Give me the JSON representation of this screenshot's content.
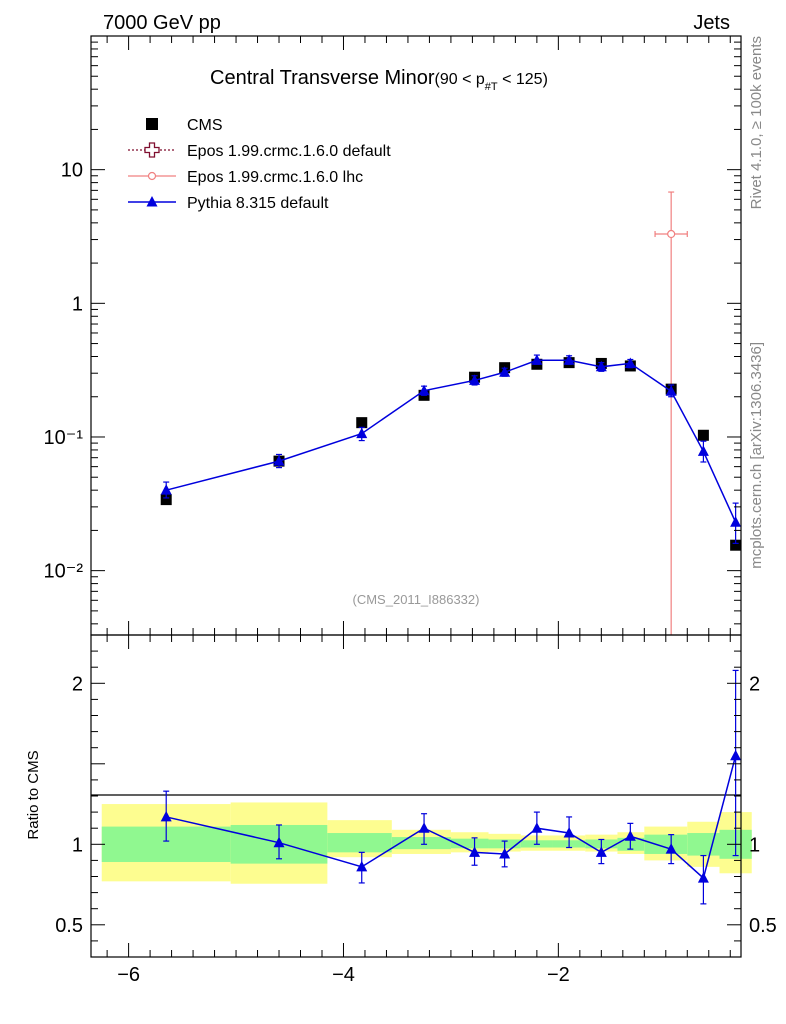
{
  "header": {
    "left": "7000 GeV pp",
    "right": "Jets"
  },
  "side_labels": {
    "rivet": "Rivet 4.1.0, ≥ 100k events",
    "mcplots": "mcplots.cern.ch [arXiv:1306.3436]"
  },
  "colors": {
    "cms": "#000000",
    "epos_default": "#7f0f2f",
    "epos_lhc": "#f08080",
    "pythia": "#0000dd",
    "band_inner": "#90f890",
    "band_outer": "#fdfd90"
  },
  "chart_data": [
    {
      "type": "scatter",
      "title": "Central Transverse Minor",
      "title_suffix": "(90 < p",
      "title_sub": "#T",
      "title_end": " < 125)",
      "analysis_tag": "(CMS_2011_I886332)",
      "yscale": "log",
      "xlim": [
        -6.35,
        -0.3
      ],
      "ylim": [
        0.0033,
        100
      ],
      "y_major_ticks": [
        0.01,
        0.1,
        1,
        10
      ],
      "y_tick_labels": [
        "10⁻²",
        "10⁻¹",
        "1",
        "10"
      ],
      "x_ticks": [
        -6,
        -4,
        -2
      ],
      "x_tick_labels": [
        "−6",
        "−4",
        "−2"
      ],
      "legend": [
        {
          "key": "cms",
          "label": "CMS"
        },
        {
          "key": "epos_default",
          "label": "Epos 1.99.crmc.1.6.0 default"
        },
        {
          "key": "epos_lhc",
          "label": "Epos 1.99.crmc.1.6.0 lhc"
        },
        {
          "key": "pythia",
          "label": "Pythia 8.315 default"
        }
      ],
      "series": [
        {
          "name": "CMS",
          "key": "cms",
          "x": [
            -5.65,
            -4.6,
            -3.83,
            -3.25,
            -2.78,
            -2.5,
            -2.2,
            -1.9,
            -1.6,
            -1.33,
            -0.95,
            -0.65,
            -0.35
          ],
          "y": [
            0.034,
            0.066,
            0.128,
            0.205,
            0.28,
            0.33,
            0.35,
            0.36,
            0.355,
            0.34,
            0.228,
            0.103,
            0.0155
          ]
        },
        {
          "name": "Epos 1.99.crmc.1.6.0 lhc",
          "key": "epos_lhc",
          "x": [
            -0.95
          ],
          "xerr": [
            0.15
          ],
          "y": [
            3.3
          ],
          "ylo": [
            0.001
          ],
          "yhi": [
            6.8
          ]
        },
        {
          "name": "Pythia 8.315 default",
          "key": "pythia",
          "x": [
            -5.65,
            -4.6,
            -3.83,
            -3.25,
            -2.78,
            -2.5,
            -2.2,
            -1.9,
            -1.6,
            -1.33,
            -0.95,
            -0.65,
            -0.35
          ],
          "y": [
            0.04,
            0.066,
            0.106,
            0.222,
            0.265,
            0.305,
            0.375,
            0.375,
            0.335,
            0.355,
            0.22,
            0.078,
            0.023
          ],
          "ylo": [
            0.035,
            0.059,
            0.094,
            0.205,
            0.245,
            0.285,
            0.35,
            0.35,
            0.31,
            0.33,
            0.2,
            0.065,
            0.016
          ],
          "yhi": [
            0.046,
            0.074,
            0.118,
            0.24,
            0.287,
            0.327,
            0.41,
            0.405,
            0.36,
            0.38,
            0.245,
            0.093,
            0.032
          ]
        }
      ]
    },
    {
      "type": "scatter",
      "ylabel": "Ratio to CMS",
      "yscale": "linear",
      "xlim": [
        -6.35,
        -0.3
      ],
      "ylim": [
        0.3,
        2.3
      ],
      "y_ticks": [
        0.5,
        1,
        2
      ],
      "y_tick_labels": [
        "0.5",
        "1",
        "2"
      ],
      "x_ticks": [
        -6,
        -4,
        -2
      ],
      "x_tick_labels": [
        "−6",
        "−4",
        "−2"
      ],
      "bands": {
        "edges": [
          -6.25,
          -5.05,
          -4.15,
          -3.55,
          -3.0,
          -2.65,
          -2.35,
          -2.05,
          -1.75,
          -1.45,
          -1.2,
          -0.8,
          -0.5,
          -0.2
        ],
        "inner_lo": [
          0.89,
          0.88,
          0.95,
          0.97,
          0.975,
          0.975,
          0.98,
          0.98,
          0.975,
          0.96,
          0.94,
          0.93,
          0.91
        ],
        "inner_hi": [
          1.11,
          1.12,
          1.07,
          1.045,
          1.035,
          1.03,
          1.025,
          1.025,
          1.03,
          1.04,
          1.06,
          1.07,
          1.09
        ],
        "outer_lo": [
          0.77,
          0.755,
          0.92,
          0.94,
          0.95,
          0.955,
          0.96,
          0.96,
          0.955,
          0.94,
          0.9,
          0.86,
          0.82
        ],
        "outer_hi": [
          1.25,
          1.26,
          1.15,
          1.09,
          1.075,
          1.065,
          1.055,
          1.055,
          1.06,
          1.075,
          1.11,
          1.14,
          1.2
        ]
      },
      "series": [
        {
          "name": "Pythia 8.315 default",
          "key": "pythia",
          "x": [
            -5.65,
            -4.6,
            -3.83,
            -3.25,
            -2.78,
            -2.5,
            -2.2,
            -1.9,
            -1.6,
            -1.33,
            -0.95,
            -0.65,
            -0.35
          ],
          "y": [
            1.17,
            1.01,
            0.86,
            1.1,
            0.95,
            0.94,
            1.1,
            1.07,
            0.95,
            1.05,
            0.97,
            0.79,
            1.55
          ],
          "ylo": [
            1.02,
            0.91,
            0.76,
            1.0,
            0.87,
            0.86,
            1.0,
            0.98,
            0.88,
            0.97,
            0.88,
            0.63,
            0.93
          ],
          "yhi": [
            1.33,
            1.12,
            0.95,
            1.19,
            1.04,
            1.02,
            1.2,
            1.17,
            1.03,
            1.13,
            1.06,
            0.93,
            2.08
          ]
        }
      ]
    }
  ]
}
